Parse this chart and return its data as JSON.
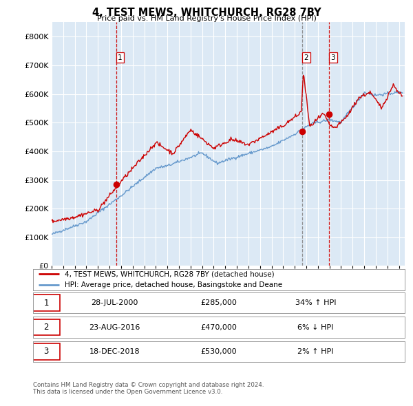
{
  "title": "4, TEST MEWS, WHITCHURCH, RG28 7BY",
  "subtitle": "Price paid vs. HM Land Registry's House Price Index (HPI)",
  "bg_color": "#dce9f5",
  "legend_label_red": "4, TEST MEWS, WHITCHURCH, RG28 7BY (detached house)",
  "legend_label_blue": "HPI: Average price, detached house, Basingstoke and Deane",
  "footer": "Contains HM Land Registry data © Crown copyright and database right 2024.\nThis data is licensed under the Open Government Licence v3.0.",
  "transactions": [
    {
      "num": 1,
      "date": "28-JUL-2000",
      "price": 285000,
      "pct": "34%",
      "dir": "↑",
      "x": 2000.57
    },
    {
      "num": 2,
      "date": "23-AUG-2016",
      "price": 470000,
      "pct": "6%",
      "dir": "↓",
      "x": 2016.64
    },
    {
      "num": 3,
      "date": "18-DEC-2018",
      "price": 530000,
      "pct": "2%",
      "dir": "↑",
      "x": 2018.96
    }
  ],
  "red_line_color": "#cc0000",
  "blue_line_color": "#6699cc",
  "vline_colors": [
    "#cc0000",
    "#888888",
    "#cc0000"
  ],
  "marker_color": "#cc0000",
  "ylim": [
    0,
    850000
  ],
  "yticks": [
    0,
    100000,
    200000,
    300000,
    400000,
    500000,
    600000,
    700000,
    800000
  ],
  "xmin": 1995,
  "xmax": 2025.5
}
